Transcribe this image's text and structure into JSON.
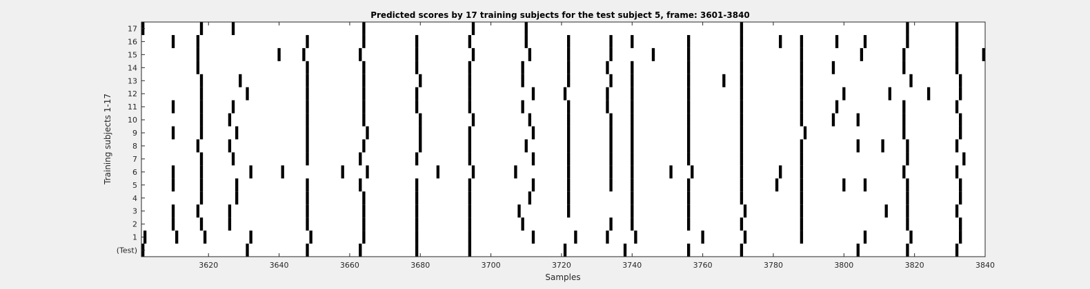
{
  "chart_data": {
    "type": "heatmap",
    "title": "Predicted scores by 17 training subjects for the test subject 5, frame: 3601-3840",
    "xlabel": "Samples",
    "ylabel": "Training subjects 1-17",
    "xlim": [
      3601,
      3840
    ],
    "x_ticks": [
      3620,
      3640,
      3660,
      3680,
      3700,
      3720,
      3740,
      3760,
      3780,
      3800,
      3820,
      3840
    ],
    "y_categories": [
      "(Test)",
      "1",
      "2",
      "3",
      "4",
      "5",
      "6",
      "7",
      "8",
      "9",
      "10",
      "11",
      "12",
      "13",
      "14",
      "15",
      "16",
      "17"
    ],
    "grid": false,
    "colors": {
      "mark": "#000000",
      "background": "#ffffff",
      "figure": "#f0f0f0"
    },
    "rows": [
      {
        "row": "(Test)",
        "marks": [
          3601,
          3631,
          3648,
          3663,
          3679,
          3694,
          3721,
          3738,
          3756,
          3771,
          3804,
          3818,
          3832
        ]
      },
      {
        "row": "1",
        "marks": [
          3602,
          3611,
          3619,
          3632,
          3649,
          3664,
          3679,
          3694,
          3712,
          3724,
          3733,
          3741,
          3760,
          3772,
          3788,
          3806,
          3819,
          3833
        ]
      },
      {
        "row": "2",
        "marks": [
          3610,
          3618,
          3626,
          3648,
          3664,
          3679,
          3694,
          3709,
          3734,
          3740,
          3756,
          3771,
          3788,
          3818,
          3833
        ]
      },
      {
        "row": "3",
        "marks": [
          3610,
          3617,
          3626,
          3648,
          3664,
          3679,
          3694,
          3708,
          3722,
          3740,
          3756,
          3772,
          3788,
          3812,
          3818,
          3832
        ]
      },
      {
        "row": "4",
        "marks": [
          3618,
          3628,
          3648,
          3664,
          3679,
          3694,
          3711,
          3722,
          3740,
          3756,
          3771,
          3788,
          3818,
          3833
        ]
      },
      {
        "row": "5",
        "marks": [
          3610,
          3618,
          3628,
          3648,
          3663,
          3679,
          3694,
          3712,
          3722,
          3734,
          3740,
          3756,
          3771,
          3781,
          3788,
          3800,
          3806,
          3818,
          3833
        ]
      },
      {
        "row": "6",
        "marks": [
          3610,
          3618,
          3632,
          3641,
          3658,
          3665,
          3685,
          3695,
          3707,
          3722,
          3734,
          3740,
          3751,
          3757,
          3771,
          3782,
          3788,
          3817,
          3832
        ]
      },
      {
        "row": "7",
        "marks": [
          3618,
          3627,
          3648,
          3663,
          3679,
          3694,
          3712,
          3722,
          3734,
          3740,
          3756,
          3771,
          3788,
          3818,
          3834
        ]
      },
      {
        "row": "8",
        "marks": [
          3617,
          3626,
          3648,
          3664,
          3680,
          3694,
          3710,
          3722,
          3734,
          3740,
          3756,
          3771,
          3788,
          3804,
          3811,
          3818,
          3832
        ]
      },
      {
        "row": "9",
        "marks": [
          3610,
          3618,
          3628,
          3648,
          3665,
          3680,
          3694,
          3712,
          3722,
          3734,
          3740,
          3756,
          3771,
          3789,
          3817,
          3833
        ]
      },
      {
        "row": "10",
        "marks": [
          3618,
          3626,
          3648,
          3664,
          3680,
          3695,
          3711,
          3722,
          3734,
          3740,
          3756,
          3771,
          3788,
          3797,
          3804,
          3817,
          3833
        ]
      },
      {
        "row": "11",
        "marks": [
          3610,
          3618,
          3627,
          3648,
          3664,
          3679,
          3694,
          3709,
          3722,
          3733,
          3740,
          3756,
          3771,
          3788,
          3798,
          3817,
          3832
        ]
      },
      {
        "row": "12",
        "marks": [
          3618,
          3631,
          3648,
          3664,
          3679,
          3694,
          3712,
          3721,
          3733,
          3740,
          3756,
          3771,
          3788,
          3800,
          3813,
          3824,
          3833
        ]
      },
      {
        "row": "13",
        "marks": [
          3618,
          3629,
          3648,
          3664,
          3680,
          3694,
          3709,
          3722,
          3734,
          3740,
          3756,
          3766,
          3771,
          3788,
          3819,
          3833
        ]
      },
      {
        "row": "14",
        "marks": [
          3617,
          3648,
          3664,
          3679,
          3694,
          3709,
          3722,
          3733,
          3740,
          3756,
          3771,
          3788,
          3797,
          3817,
          3832
        ]
      },
      {
        "row": "15",
        "marks": [
          3617,
          3640,
          3647,
          3663,
          3679,
          3695,
          3711,
          3722,
          3734,
          3746,
          3756,
          3771,
          3788,
          3805,
          3817,
          3832,
          3840
        ]
      },
      {
        "row": "16",
        "marks": [
          3610,
          3617,
          3648,
          3664,
          3679,
          3694,
          3710,
          3722,
          3734,
          3740,
          3756,
          3771,
          3782,
          3788,
          3798,
          3806,
          3818,
          3832
        ]
      },
      {
        "row": "17",
        "marks": [
          3601,
          3618,
          3627,
          3664,
          3695,
          3710,
          3771,
          3818,
          3832
        ]
      }
    ]
  }
}
